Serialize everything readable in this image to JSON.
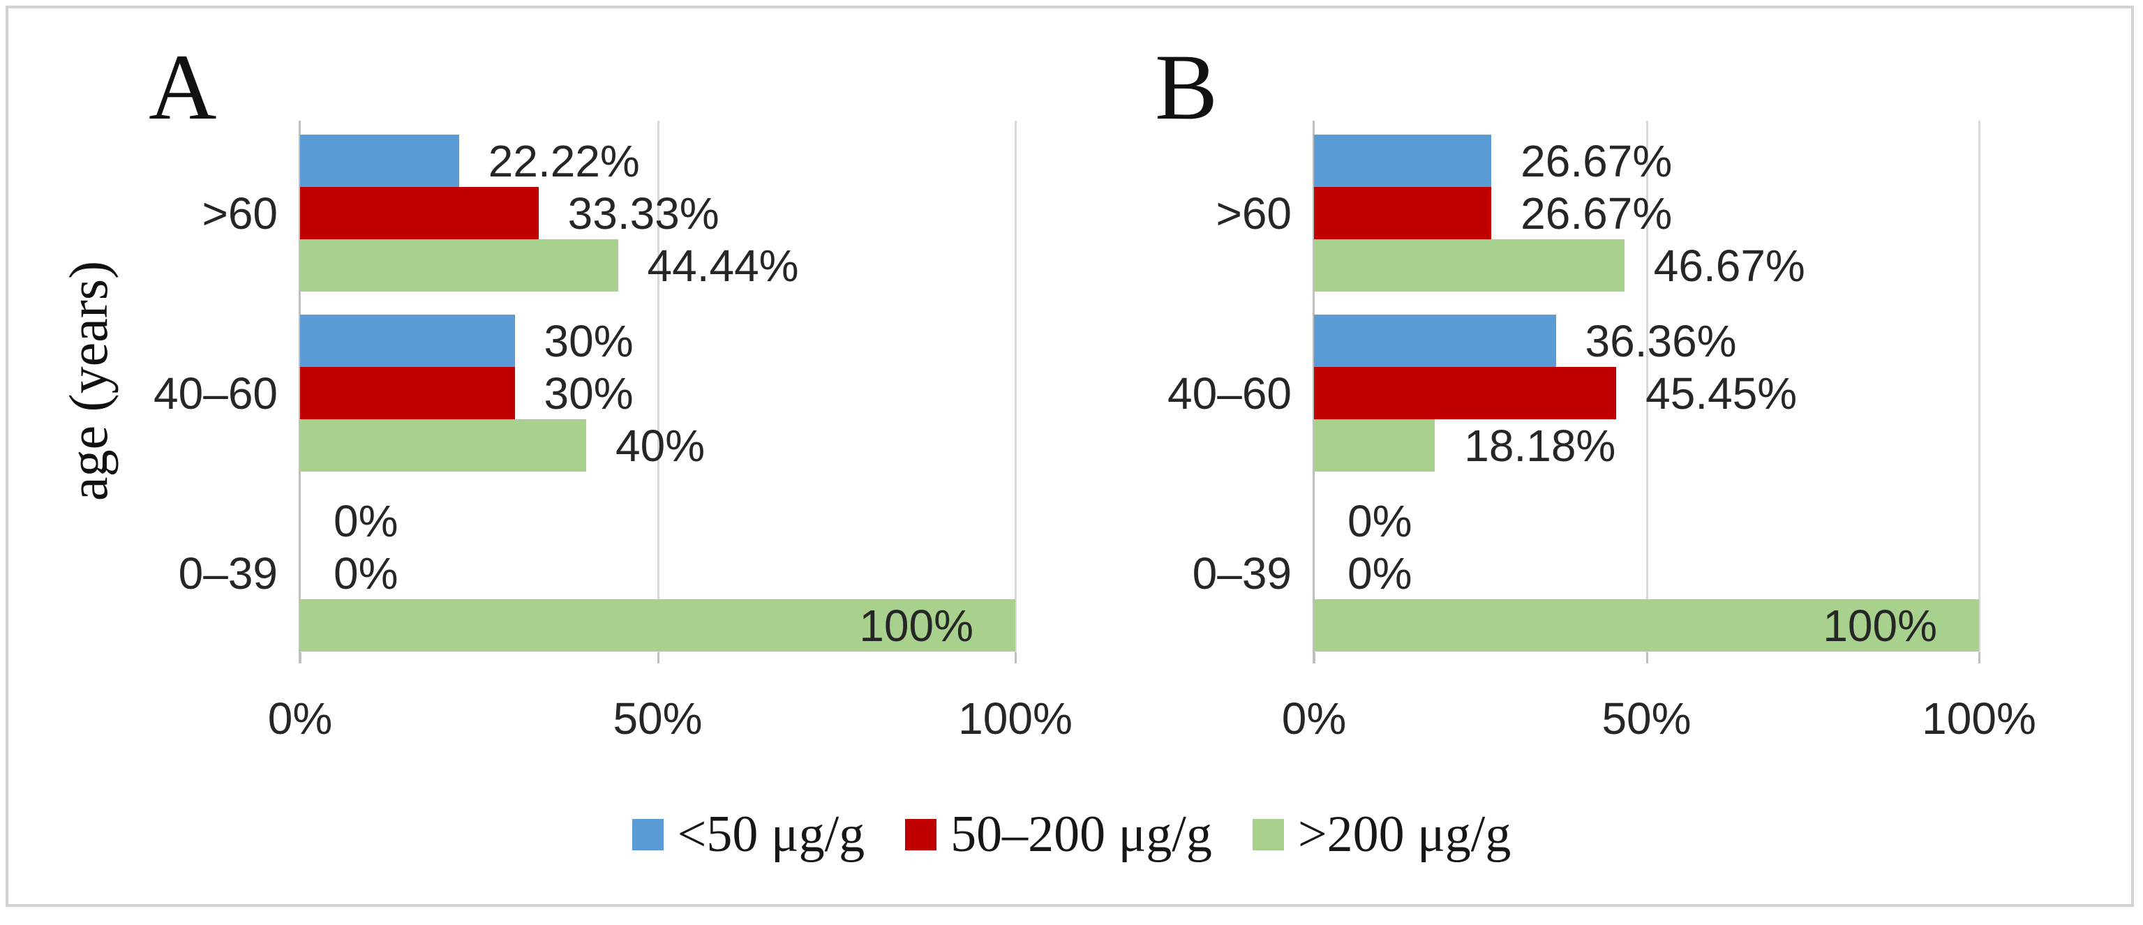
{
  "style": {
    "background": "#ffffff",
    "frame_color": "#d2d2d2",
    "grid_color": "#d9d9d9",
    "axis_color": "#bfbfbf",
    "text_color": "#262626"
  },
  "legend": {
    "position": "bottom",
    "items": [
      {
        "label": "<50 μg/g",
        "color": "#5B9BD5"
      },
      {
        "label": "50–200 μg/g",
        "color": "#C00000"
      },
      {
        "label": ">200 μg/g",
        "color": "#A9D18E"
      }
    ]
  },
  "chart_data": [
    {
      "type": "bar",
      "orientation": "horizontal",
      "panel_label": "A",
      "ylabel": "age (years)",
      "categories": [
        ">60",
        "40–60",
        "0–39"
      ],
      "series": [
        {
          "name": "<50 μg/g",
          "color": "#5B9BD5",
          "values": [
            22.22,
            30,
            0
          ],
          "data_labels": [
            "22.22%",
            "30%",
            "0%"
          ]
        },
        {
          "name": "50–200 μg/g",
          "color": "#C00000",
          "values": [
            33.33,
            30,
            0
          ],
          "data_labels": [
            "33.33%",
            "30%",
            "0%"
          ]
        },
        {
          "name": ">200 μg/g",
          "color": "#A9D18E",
          "values": [
            44.44,
            40,
            100
          ],
          "data_labels": [
            "44.44%",
            "40%",
            "100%"
          ]
        }
      ],
      "xlim": [
        0,
        100
      ],
      "x_ticks": [
        "0%",
        "50%",
        "100%"
      ],
      "grid": true,
      "legend_position": "bottom"
    },
    {
      "type": "bar",
      "orientation": "horizontal",
      "panel_label": "B",
      "ylabel": "",
      "categories": [
        ">60",
        "40–60",
        "0–39"
      ],
      "series": [
        {
          "name": "<50 μg/g",
          "color": "#5B9BD5",
          "values": [
            26.67,
            36.36,
            0
          ],
          "data_labels": [
            "26.67%",
            "36.36%",
            "0%"
          ]
        },
        {
          "name": "50–200 μg/g",
          "color": "#C00000",
          "values": [
            26.67,
            45.45,
            0
          ],
          "data_labels": [
            "26.67%",
            "45.45%",
            "0%"
          ]
        },
        {
          "name": ">200 μg/g",
          "color": "#A9D18E",
          "values": [
            46.67,
            18.18,
            100
          ],
          "data_labels": [
            "46.67%",
            "18.18%",
            "100%"
          ]
        }
      ],
      "xlim": [
        0,
        100
      ],
      "x_ticks": [
        "0%",
        "50%",
        "100%"
      ],
      "grid": true,
      "legend_position": "bottom"
    }
  ]
}
